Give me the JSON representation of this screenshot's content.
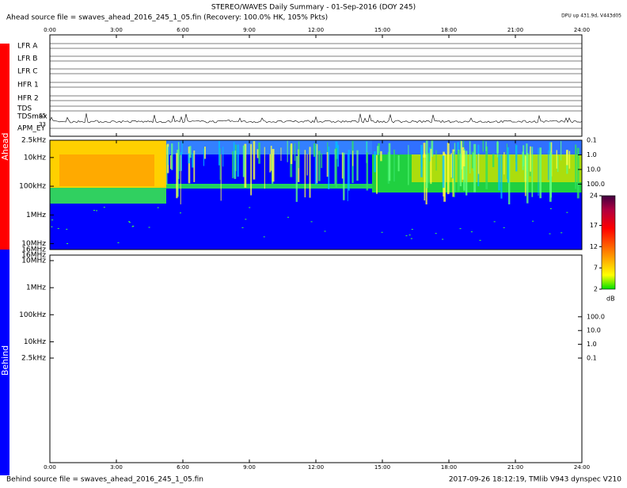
{
  "chart_data": {
    "type": "spectrogram",
    "title": "STEREO/WAVES Daily Summary - 01-Sep-2016 (DOY 245)",
    "subtitle": "Ahead source file = swaves_ahead_2016_245_1_05.fin (Recovery: 100.0% HK, 105% Pkts)",
    "corner_note": "DPU up 431.9d, V443d05",
    "footer_left": "Behind source file = swaves_ahead_2016_245_1_05.fin",
    "footer_right": "2017-09-26 18:12:19, TMlib V943 dynspec V210",
    "panels": [
      {
        "name": "Ahead",
        "color": "#ff0000"
      },
      {
        "name": "Behind",
        "color": "#0000ff"
      }
    ],
    "rows": [
      "LFR A",
      "LFR B",
      "LFR C",
      "HFR 1",
      "HFR 2",
      "TDS",
      "TDSmax",
      "APM_EY"
    ],
    "tdsmax_ticks": [
      65,
      33
    ],
    "xlim": [
      0,
      24
    ],
    "xticks": [
      {
        "value": 0,
        "label": "0:00"
      },
      {
        "value": 3,
        "label": "3:00"
      },
      {
        "value": 6,
        "label": "6:00"
      },
      {
        "value": 9,
        "label": "9:00"
      },
      {
        "value": 12,
        "label": "12:00"
      },
      {
        "value": 15,
        "label": "15:00"
      },
      {
        "value": 18,
        "label": "18:00"
      },
      {
        "value": 21,
        "label": "21:00"
      },
      {
        "value": 24,
        "label": "24:00"
      }
    ],
    "log_y": true,
    "ylim": [
      2500,
      16000000
    ],
    "yticks": [
      {
        "value": 2500,
        "label": "2.5kHz"
      },
      {
        "value": 10000,
        "label": "10kHz"
      },
      {
        "value": 100000,
        "label": "100kHz"
      },
      {
        "value": 1000000,
        "label": "1MHz"
      },
      {
        "value": 10000000,
        "label": "10MHz"
      },
      {
        "value": 16000000,
        "label": "16MHz"
      }
    ],
    "y2lim": [
      0.1,
      3000000
    ],
    "y2ticks": [
      0.1,
      {
        "value": 1,
        "label": "1.0"
      },
      {
        "value": 10,
        "label": "10.0"
      },
      {
        "value": 100,
        "label": "100.0"
      }
    ],
    "colorbar": {
      "label": "dB",
      "lim": [
        2,
        24
      ],
      "ticks": [
        2,
        7,
        12,
        17,
        24
      ]
    }
  }
}
